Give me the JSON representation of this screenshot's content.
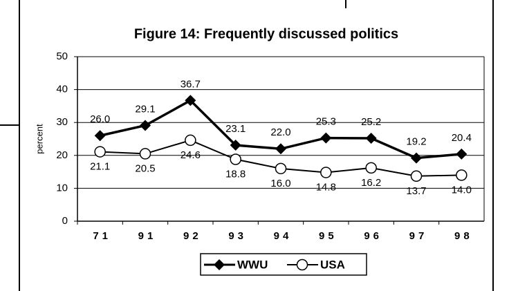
{
  "chart_data": {
    "type": "line",
    "title": "Figure 14: Frequently discussed politics",
    "ylabel": "percent",
    "categories": [
      "71",
      "91",
      "92",
      "93",
      "94",
      "95",
      "96",
      "97",
      "98"
    ],
    "series": [
      {
        "name": "WWU",
        "color": "#000000",
        "marker": "diamond",
        "values": [
          26.0,
          29.1,
          36.7,
          23.1,
          22.0,
          25.3,
          25.2,
          19.2,
          20.4
        ],
        "value_labels": [
          "26.0",
          "29.1",
          "36.7",
          "23.1",
          "22.0",
          "25.3",
          "25.2",
          "19.2",
          "20.4"
        ]
      },
      {
        "name": "USA",
        "color": "#000000",
        "marker": "circle",
        "values": [
          21.1,
          20.5,
          24.6,
          18.8,
          16.0,
          14.8,
          16.2,
          13.7,
          14.0
        ],
        "value_labels": [
          "21.1",
          "20.5",
          "24.6",
          "18.8",
          "16.0",
          "14.8",
          "16.2",
          "13.7",
          "14.0"
        ]
      }
    ],
    "ylim": [
      0,
      50
    ],
    "yticks": [
      0,
      10,
      20,
      30,
      40,
      50
    ],
    "grid": true,
    "legend": "bottom"
  }
}
